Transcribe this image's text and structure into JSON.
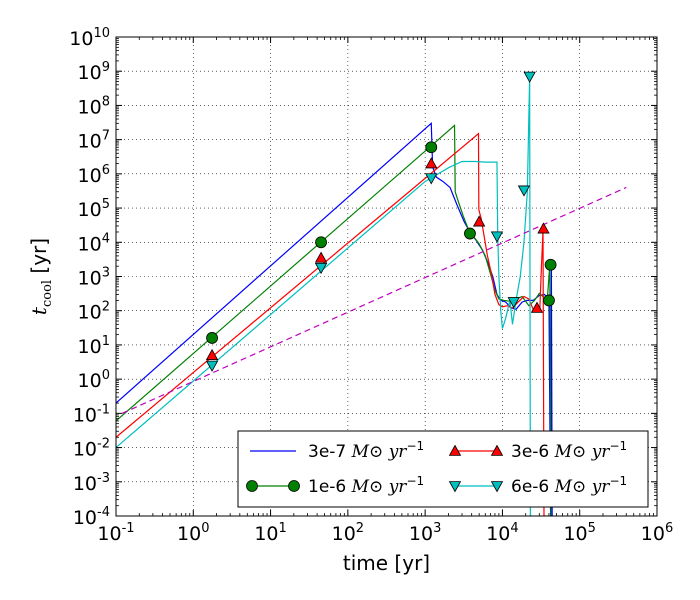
{
  "chart_data": {
    "type": "line",
    "xlabel": "time [yr]",
    "ylabel": "t_cool [yr]",
    "ylabel_main": "t",
    "ylabel_sub": "cool",
    "ylabel_unit": " [yr]",
    "x_scale": "log",
    "y_scale": "log",
    "xlim": [
      0.1,
      1000000
    ],
    "ylim": [
      0.0001,
      10000000000
    ],
    "grid": true,
    "legend_position": "lower-right",
    "x_ticks": [
      {
        "base": "10",
        "exp": "-1",
        "value": 0.1
      },
      {
        "base": "10",
        "exp": "0",
        "value": 1
      },
      {
        "base": "10",
        "exp": "1",
        "value": 10
      },
      {
        "base": "10",
        "exp": "2",
        "value": 100
      },
      {
        "base": "10",
        "exp": "3",
        "value": 1000
      },
      {
        "base": "10",
        "exp": "4",
        "value": 10000
      },
      {
        "base": "10",
        "exp": "5",
        "value": 100000
      },
      {
        "base": "10",
        "exp": "6",
        "value": 1000000
      }
    ],
    "y_ticks": [
      {
        "base": "10",
        "exp": "-4",
        "value": 0.0001
      },
      {
        "base": "10",
        "exp": "-3",
        "value": 0.001
      },
      {
        "base": "10",
        "exp": "-2",
        "value": 0.01
      },
      {
        "base": "10",
        "exp": "-1",
        "value": 0.1
      },
      {
        "base": "10",
        "exp": "0",
        "value": 1
      },
      {
        "base": "10",
        "exp": "1",
        "value": 10
      },
      {
        "base": "10",
        "exp": "2",
        "value": 100
      },
      {
        "base": "10",
        "exp": "3",
        "value": 1000
      },
      {
        "base": "10",
        "exp": "4",
        "value": 10000
      },
      {
        "base": "10",
        "exp": "5",
        "value": 100000
      },
      {
        "base": "10",
        "exp": "6",
        "value": 1000000
      },
      {
        "base": "10",
        "exp": "7",
        "value": 10000000
      },
      {
        "base": "10",
        "exp": "8",
        "value": 100000000
      },
      {
        "base": "10",
        "exp": "9",
        "value": 1000000000
      },
      {
        "base": "10",
        "exp": "10",
        "value": 10000000000
      }
    ],
    "legend_unit_text": "M⊙ yr",
    "legend_unit_exp": "−1",
    "series": [
      {
        "name": "3e-7",
        "color": "#0000ff",
        "marker": "none",
        "x": [
          0.1,
          1200,
          1250,
          1400,
          1700,
          2100,
          2600,
          3200,
          3800,
          4500,
          5500,
          6500,
          7500,
          8500,
          9500,
          11000,
          13000,
          15000,
          18000,
          21000,
          25000,
          30000,
          35000,
          40000,
          42000,
          43000,
          44000,
          45000
        ],
        "y": [
          0.2,
          30000000,
          1600000,
          800000,
          600000,
          400000,
          120000,
          40000,
          20000,
          12000,
          6000,
          2500,
          1000,
          300,
          200,
          180,
          120,
          110,
          180,
          200,
          200,
          280,
          300,
          200,
          0.0001,
          2000,
          0.0001,
          0.0001
        ]
      },
      {
        "name": "1e-6",
        "color": "#008000",
        "marker": "circle",
        "x": [
          0.1,
          2400,
          2450,
          2700,
          3100,
          3600,
          4200,
          5000,
          6000,
          7000,
          8000,
          9000,
          10500,
          12500,
          15000,
          18000,
          22000,
          26000,
          30000,
          34000,
          38000,
          41000,
          42500,
          43500
        ],
        "y": [
          0.06,
          26000000,
          300000,
          150000,
          60000,
          25000,
          15000,
          9000,
          4000,
          1200,
          400,
          220,
          200,
          190,
          220,
          260,
          140,
          200,
          320,
          250,
          200,
          2200,
          0.0001,
          0.0001
        ],
        "markers": [
          [
            1.75,
            16
          ],
          [
            45,
            10000
          ],
          [
            1200,
            6000000
          ],
          [
            3800,
            18000
          ],
          [
            40000,
            200
          ],
          [
            42000,
            2200
          ]
        ]
      },
      {
        "name": "3e-6",
        "color": "#ff0000",
        "marker": "triangle-up",
        "x": [
          0.1,
          4900,
          4950,
          5300,
          5800,
          6400,
          7200,
          8000,
          9000,
          10000,
          11500,
          13500,
          16000,
          19000,
          22000,
          25000,
          28000,
          30500,
          32000,
          33500,
          34500,
          35500,
          36500
        ],
        "y": [
          0.02,
          15000000,
          90000,
          50000,
          15000,
          4000,
          1200,
          300,
          150,
          130,
          140,
          120,
          180,
          260,
          220,
          110,
          130,
          120,
          2000,
          22000,
          0.0001,
          0.0001,
          0.0001
        ],
        "markers": [
          [
            1.75,
            5
          ],
          [
            45,
            3500
          ],
          [
            1200,
            2000000
          ],
          [
            5000,
            40000
          ],
          [
            28000,
            120
          ],
          [
            34000,
            25000
          ]
        ]
      },
      {
        "name": "6e-6",
        "color": "#00bfbf",
        "marker": "triangle-down",
        "x": [
          0.1,
          1000,
          2000,
          3000,
          4500,
          6000,
          8000,
          8500,
          8700,
          9000,
          9500,
          10000,
          11000,
          12500,
          13500,
          15000,
          17000,
          19000,
          21000,
          22500,
          23000,
          23500,
          24000,
          24500
        ],
        "y": [
          0.01,
          600000,
          1500000,
          2300000,
          2300000,
          2200000,
          2200000,
          2200000,
          15000,
          1000,
          100,
          30,
          60,
          200,
          40,
          200,
          1000,
          10000,
          300000,
          700000000,
          0.0001,
          0.0001,
          0.0001,
          0.0001
        ],
        "markers": [
          [
            1.75,
            2.5
          ],
          [
            45,
            1800
          ],
          [
            1200,
            750000
          ],
          [
            8500,
            15000
          ],
          [
            14000,
            180
          ],
          [
            19000,
            330000
          ],
          [
            22500,
            700000000
          ]
        ]
      }
    ],
    "reference_line": {
      "style": "dashed",
      "color": "#bf00bf",
      "x": [
        0.12,
        400000
      ],
      "y": [
        0.1,
        400000
      ]
    }
  }
}
